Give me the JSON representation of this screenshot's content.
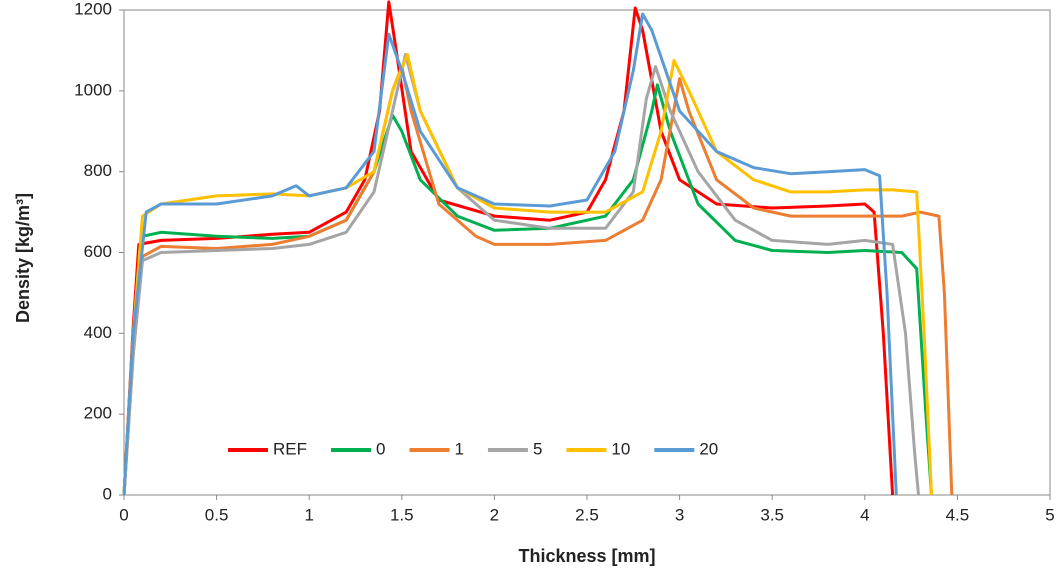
{
  "chart_data": {
    "type": "line",
    "x_label": "Thickness [mm]",
    "y_label": "Density [kg/m³]",
    "xlim": [
      0,
      5
    ],
    "xticks": [
      0,
      0.5,
      1,
      1.5,
      2,
      2.5,
      3,
      3.5,
      4,
      4.5,
      5
    ],
    "ylim": [
      0,
      1200
    ],
    "yticks": [
      0,
      200,
      400,
      600,
      800,
      1000,
      1200
    ],
    "grid": false,
    "legend": "bottom",
    "series": [
      {
        "name": "REF",
        "color": "#ff0000",
        "x": [
          0,
          0.05,
          0.08,
          0.2,
          0.5,
          0.8,
          1.0,
          1.2,
          1.3,
          1.38,
          1.43,
          1.47,
          1.55,
          1.7,
          2.0,
          2.3,
          2.5,
          2.6,
          2.7,
          2.76,
          2.8,
          2.9,
          3.0,
          3.2,
          3.5,
          3.8,
          4.0,
          4.05,
          4.1,
          4.15
        ],
        "values": [
          0,
          420,
          620,
          630,
          635,
          645,
          650,
          700,
          780,
          950,
          1220,
          1100,
          850,
          730,
          690,
          680,
          700,
          780,
          950,
          1205,
          1150,
          900,
          780,
          720,
          710,
          715,
          720,
          700,
          400,
          0
        ]
      },
      {
        "name": "0",
        "color": "#00b050",
        "x": [
          0,
          0.05,
          0.1,
          0.2,
          0.5,
          0.8,
          1.0,
          1.2,
          1.35,
          1.45,
          1.5,
          1.6,
          1.8,
          2.0,
          2.3,
          2.6,
          2.75,
          2.85,
          2.88,
          2.95,
          3.1,
          3.3,
          3.5,
          3.8,
          4.0,
          4.2,
          4.28,
          4.33,
          4.36
        ],
        "values": [
          0,
          400,
          640,
          650,
          640,
          635,
          640,
          680,
          800,
          940,
          900,
          780,
          690,
          655,
          660,
          690,
          780,
          950,
          1015,
          900,
          720,
          630,
          605,
          600,
          605,
          600,
          560,
          200,
          0
        ]
      },
      {
        "name": "1",
        "color": "#ed7d31",
        "x": [
          0,
          0.05,
          0.1,
          0.2,
          0.5,
          0.8,
          1.0,
          1.2,
          1.35,
          1.45,
          1.5,
          1.55,
          1.7,
          1.9,
          2.0,
          2.3,
          2.6,
          2.8,
          2.9,
          3.0,
          3.05,
          3.2,
          3.4,
          3.6,
          3.8,
          4.0,
          4.2,
          4.3,
          4.4,
          4.43,
          4.47
        ],
        "values": [
          0,
          350,
          590,
          615,
          610,
          620,
          640,
          680,
          800,
          1000,
          1060,
          950,
          720,
          640,
          620,
          620,
          630,
          680,
          780,
          1030,
          950,
          780,
          710,
          690,
          690,
          690,
          690,
          700,
          690,
          500,
          0
        ]
      },
      {
        "name": "5",
        "color": "#a5a5a5",
        "x": [
          0,
          0.05,
          0.1,
          0.2,
          0.5,
          0.8,
          1.0,
          1.2,
          1.35,
          1.45,
          1.52,
          1.6,
          1.8,
          2.0,
          2.3,
          2.6,
          2.75,
          2.82,
          2.87,
          2.95,
          3.1,
          3.3,
          3.5,
          3.8,
          4.0,
          4.15,
          4.22,
          4.27,
          4.29
        ],
        "values": [
          0,
          350,
          580,
          600,
          605,
          610,
          620,
          650,
          750,
          950,
          1090,
          950,
          760,
          680,
          660,
          660,
          750,
          980,
          1060,
          950,
          800,
          680,
          630,
          620,
          630,
          620,
          400,
          100,
          0
        ]
      },
      {
        "name": "10",
        "color": "#ffc000",
        "x": [
          0,
          0.05,
          0.1,
          0.2,
          0.5,
          0.8,
          1.0,
          1.2,
          1.35,
          1.45,
          1.53,
          1.6,
          1.8,
          2.0,
          2.3,
          2.6,
          2.8,
          2.9,
          2.97,
          3.05,
          3.2,
          3.4,
          3.6,
          3.8,
          4.0,
          4.15,
          4.28,
          4.32,
          4.36
        ],
        "values": [
          0,
          400,
          690,
          720,
          740,
          745,
          740,
          760,
          800,
          1000,
          1090,
          950,
          760,
          710,
          700,
          700,
          750,
          900,
          1075,
          1000,
          850,
          780,
          750,
          750,
          755,
          755,
          750,
          400,
          0
        ]
      },
      {
        "name": "20",
        "color": "#5b9bd5",
        "x": [
          0,
          0.05,
          0.12,
          0.2,
          0.5,
          0.8,
          0.93,
          1.0,
          1.2,
          1.35,
          1.43,
          1.5,
          1.6,
          1.8,
          2.0,
          2.3,
          2.5,
          2.65,
          2.75,
          2.8,
          2.85,
          3.0,
          3.2,
          3.4,
          3.6,
          3.8,
          4.0,
          4.08,
          4.12,
          4.17
        ],
        "values": [
          0,
          400,
          700,
          720,
          720,
          740,
          765,
          740,
          760,
          850,
          1140,
          1050,
          900,
          760,
          720,
          715,
          730,
          850,
          1050,
          1190,
          1150,
          950,
          850,
          810,
          795,
          800,
          805,
          790,
          500,
          0
        ]
      }
    ]
  }
}
